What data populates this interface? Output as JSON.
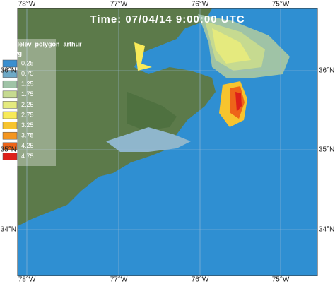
{
  "title": "Time: 07/04/14 9:00:00 UTC",
  "legend": {
    "layer": "nodalelev_polygon_arthur",
    "field": "eleavg",
    "items": [
      {
        "label": "0.25",
        "color": "#3a8fd0"
      },
      {
        "label": "0.75",
        "color": "#6ea9c6"
      },
      {
        "label": "1.25",
        "color": "#9fc3a6"
      },
      {
        "label": "1.75",
        "color": "#c6da90"
      },
      {
        "label": "2.25",
        "color": "#e5ea7e"
      },
      {
        "label": "2.75",
        "color": "#f8ea58"
      },
      {
        "label": "3.25",
        "color": "#f7c42e"
      },
      {
        "label": "3.75",
        "color": "#f4951f"
      },
      {
        "label": "4.25",
        "color": "#ee6419"
      },
      {
        "label": "4.75",
        "color": "#dd1f1a"
      }
    ]
  },
  "lon_labels": [
    "78°W",
    "77°W",
    "76°W",
    "75°W"
  ],
  "lat_labels": [
    "36°N",
    "35°N",
    "34°N"
  ]
}
